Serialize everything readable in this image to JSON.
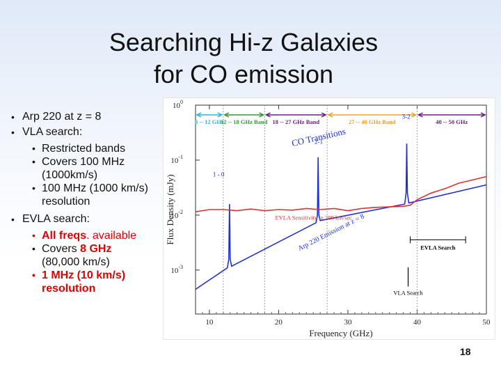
{
  "slide": {
    "title_line1": "Searching Hi-z Galaxies",
    "title_line2": "for CO emission",
    "page_number": "18"
  },
  "bullets": {
    "arp": "Arp 220 at z = 8",
    "vla": "VLA search:",
    "vla_sub1": "Restricted bands",
    "vla_sub2": "Covers 100 MHz (1000km/s)",
    "vla_sub3": "100 MHz (1000 km/s) resolution",
    "evla": "EVLA search:",
    "evla_sub1_bold": "All freqs",
    "evla_sub1_rest": ". available",
    "evla_sub2_pre": "Covers ",
    "evla_sub2_red": "8 GHz",
    "evla_sub2_post": "(80,000 km/s)",
    "evla_sub3": "1 MHz (10 km/s) resolution"
  },
  "chart_data": {
    "type": "line",
    "xlabel": "Frequency (GHz)",
    "ylabel": "Flux Density (mJy)",
    "xlim": [
      8,
      50
    ],
    "ylim_log10": [
      -3.8,
      0
    ],
    "x_ticks": [
      "10",
      "20",
      "30",
      "40",
      "50"
    ],
    "y_ticks": [
      {
        "base": "10",
        "exp": "0",
        "value": 0
      },
      {
        "base": "10",
        "exp": "-1",
        "value": -1
      },
      {
        "base": "10",
        "exp": "-2",
        "value": -2
      },
      {
        "base": "10",
        "exp": "-3",
        "value": -3
      }
    ],
    "bands": [
      {
        "label": "8 -- 12 GHz",
        "from": 8,
        "to": 12,
        "color": "#22bcd0"
      },
      {
        "label": "12 -- 18 GHz Band",
        "from": 12,
        "to": 18,
        "color": "#2f9a2f"
      },
      {
        "label": "18 -- 27 GHz Band",
        "from": 18,
        "to": 27,
        "color": "#6a1d7a"
      },
      {
        "label": "27 -- 40 GHz Band",
        "from": 27,
        "to": 40,
        "color": "#f0a020"
      },
      {
        "label": "40 -- 50 GHz",
        "from": 40,
        "to": 50,
        "color": "#6a1d7a"
      }
    ],
    "series": [
      {
        "name": "Arp 220 Emission at z = 8",
        "color": "#1f2fd0",
        "x": [
          8,
          12.6,
          12.8,
          12.9,
          13.0,
          13.2,
          25.4,
          25.6,
          25.7,
          25.8,
          26.0,
          38.2,
          38.4,
          38.5,
          38.6,
          38.8,
          50
        ],
        "log10_y": [
          -3.35,
          -2.96,
          -2.8,
          -1.8,
          -2.8,
          -2.93,
          -2.14,
          -2.0,
          -0.95,
          -2.0,
          -2.1,
          -1.8,
          -1.6,
          -0.7,
          -1.6,
          -1.78,
          -1.45
        ]
      },
      {
        "name": "EVLA Sensitivity in 200 km/sec",
        "color": "#e03030",
        "x": [
          8,
          10,
          12,
          14,
          16,
          18,
          20,
          22,
          24,
          26,
          28,
          30,
          32,
          34,
          36,
          38,
          39,
          40,
          42,
          44,
          46,
          48,
          50
        ],
        "log10_y": [
          -1.94,
          -1.9,
          -1.9,
          -1.92,
          -1.89,
          -1.92,
          -1.9,
          -1.91,
          -1.88,
          -1.9,
          -1.88,
          -1.92,
          -1.88,
          -1.86,
          -1.85,
          -1.84,
          -1.82,
          -1.72,
          -1.6,
          -1.52,
          -1.42,
          -1.36,
          -1.3
        ]
      }
    ],
    "annotations": [
      {
        "text": "CO Transitions",
        "color": "#1f2fd0"
      },
      {
        "text": "1 - 0",
        "color": "#1f2fd0",
        "x": 10.5,
        "log10_y": -1.3
      },
      {
        "text": "2-1",
        "color": "#1f2fd0",
        "x": 25.2,
        "log10_y": -0.7
      },
      {
        "text": "3-2",
        "color": "#1f2fd0",
        "x": 37.8,
        "log10_y": -0.25
      },
      {
        "text": "EVLA Search",
        "color": "#000000",
        "x_from": 39,
        "x_to": 47
      },
      {
        "text": "VLA Search",
        "color": "#000000",
        "x": 38.7
      }
    ]
  }
}
